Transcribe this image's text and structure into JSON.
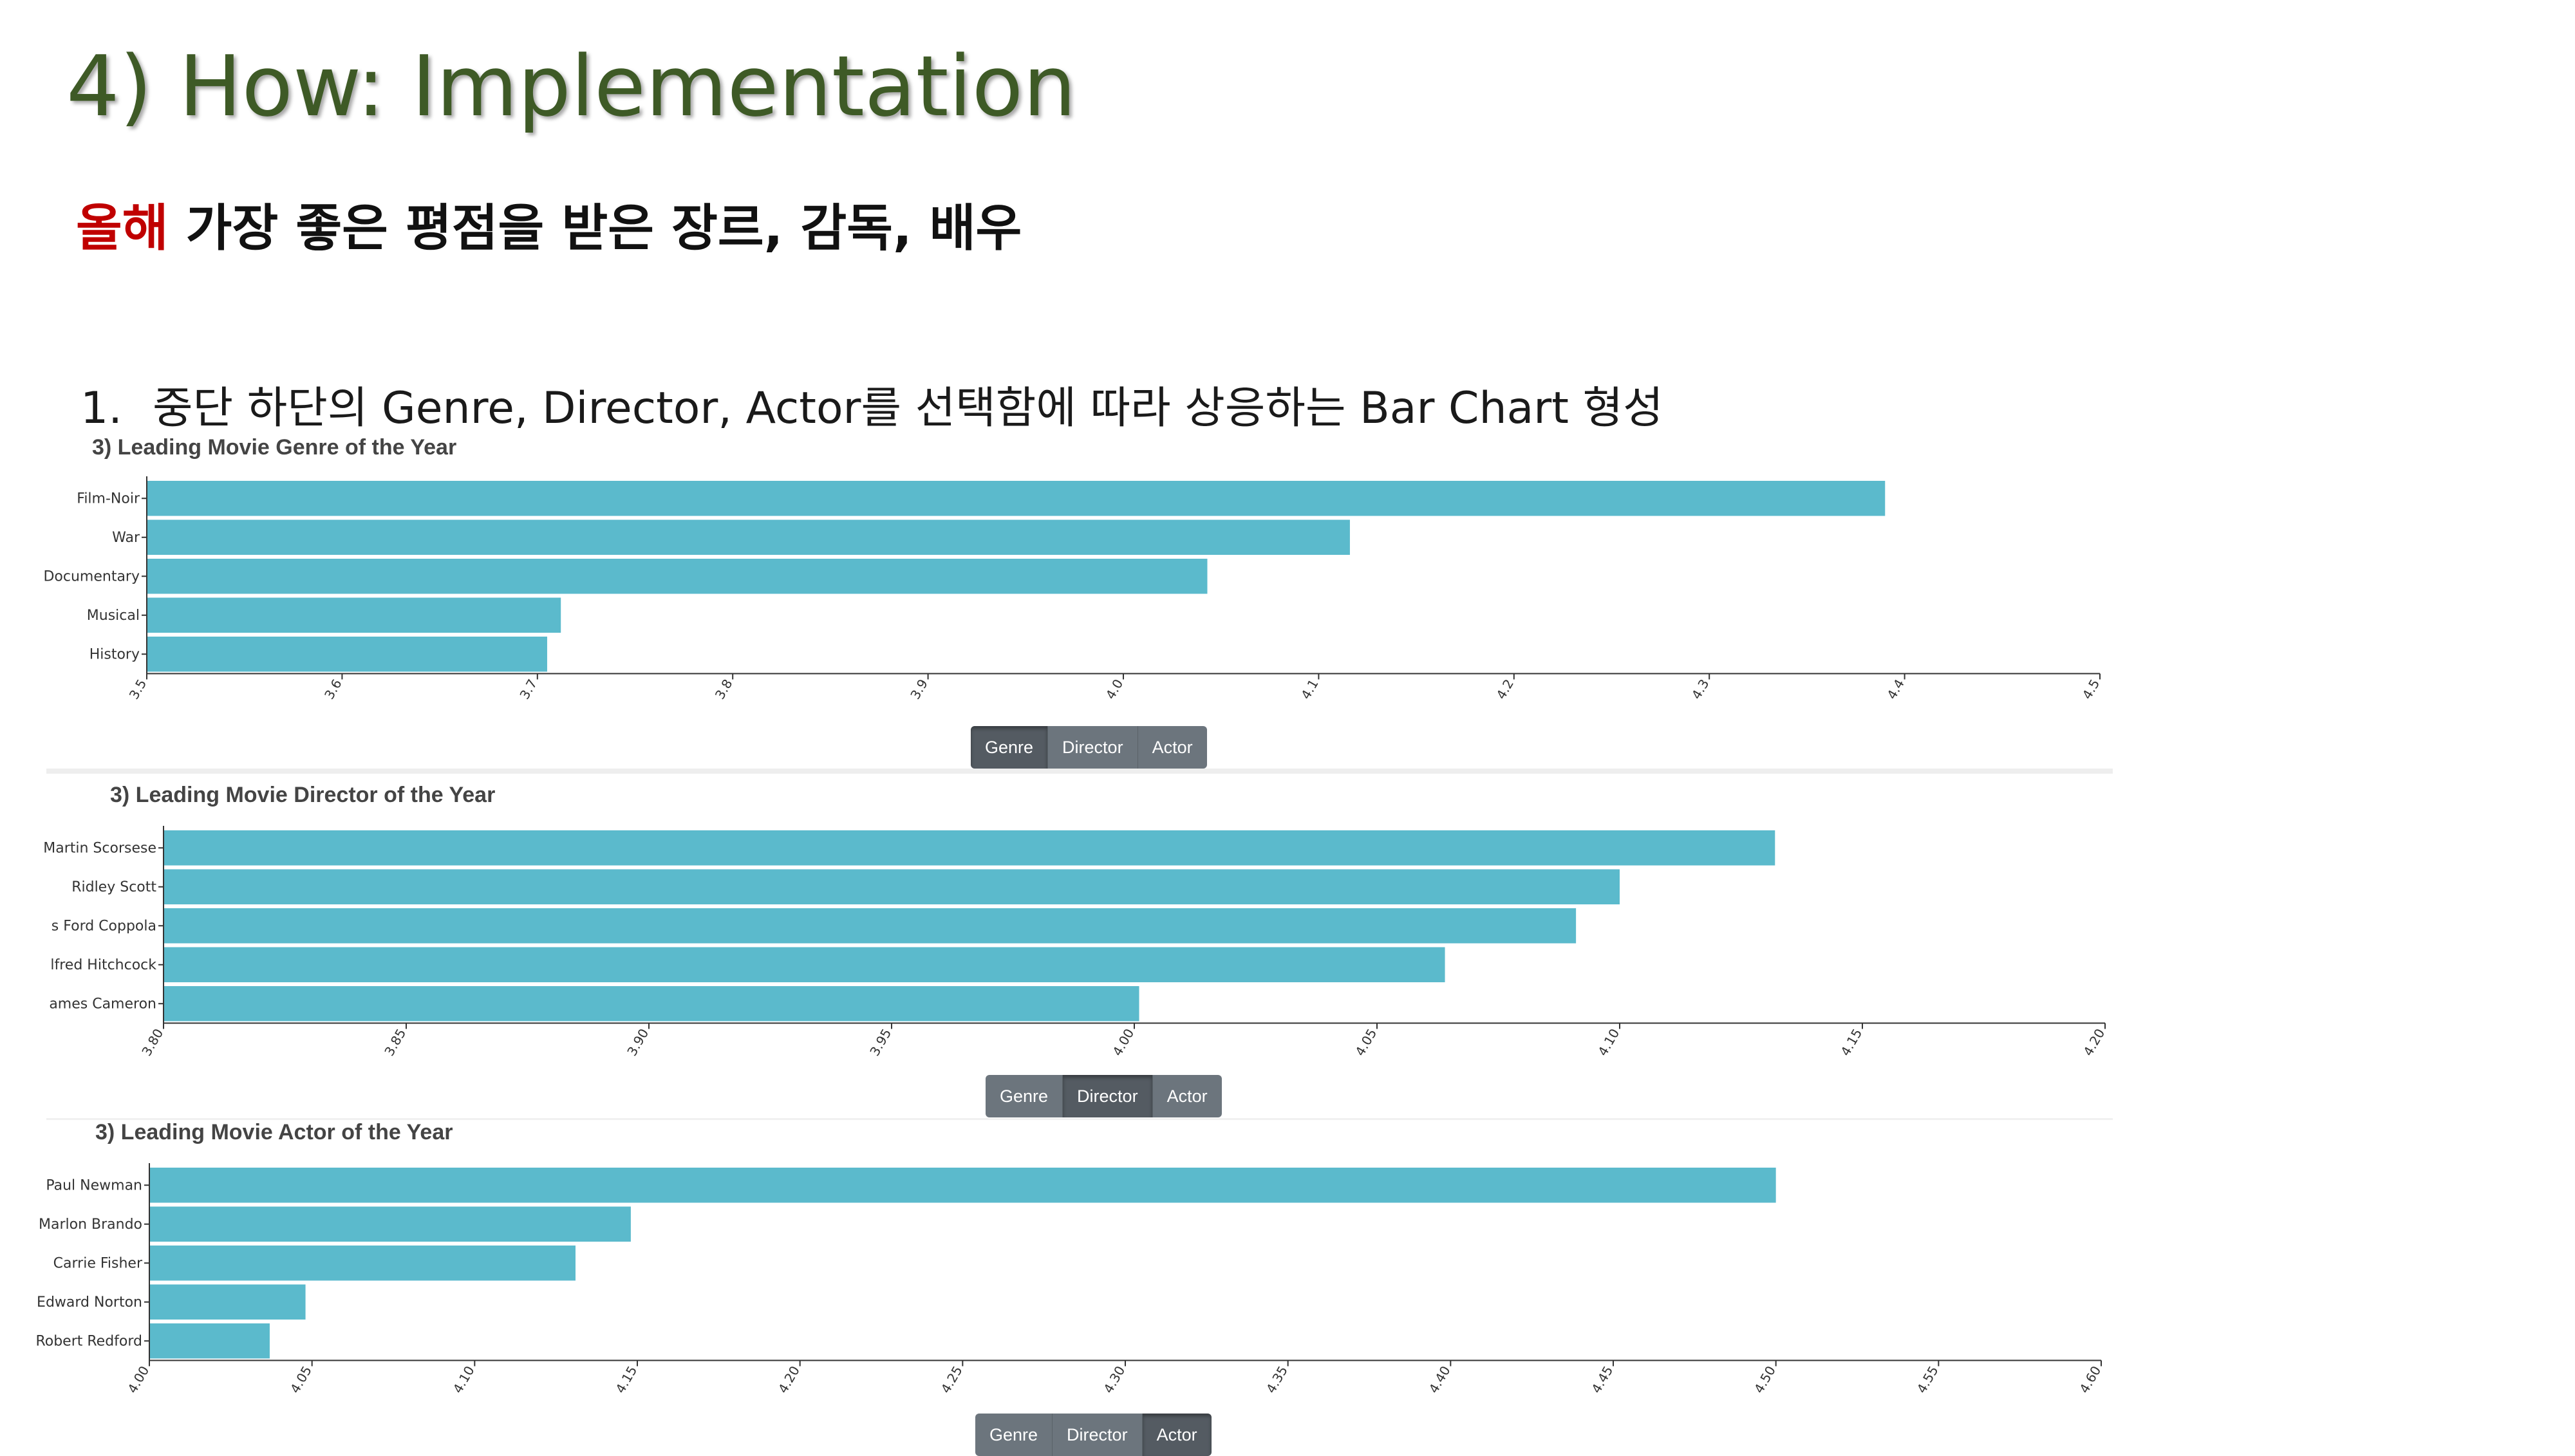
{
  "slide": {
    "title": "4) How: Implementation",
    "subtitle_highlight": "올해",
    "subtitle_rest": " 가장 좋은 평점을 받은 장르, 감독, 배우",
    "point_number": "1.",
    "point_text": "중단 하단의 Genre, Director, Actor를 선택함에 따라 상응하는 Bar Chart 형성"
  },
  "colors": {
    "bar": "#5bbacc",
    "title_green": "#3e5a26",
    "highlight_red": "#c00000",
    "button": "#6c757d",
    "button_active": "#545b62"
  },
  "chart_data": [
    {
      "type": "bar",
      "orientation": "horizontal",
      "title": "3) Leading Movie Genre of the Year",
      "categories": [
        "Film-Noir",
        "War",
        "Documentary",
        "Musical",
        "History"
      ],
      "values": [
        4.39,
        4.116,
        4.043,
        3.712,
        3.705
      ],
      "xlim": [
        3.5,
        4.5
      ],
      "ticks": [
        "3.5",
        "3.6",
        "3.7",
        "3.8",
        "3.9",
        "4.0",
        "4.1",
        "4.2",
        "4.3",
        "4.4",
        "4.5"
      ],
      "buttons": [
        "Genre",
        "Director",
        "Actor"
      ],
      "active_button": "Genre"
    },
    {
      "type": "bar",
      "orientation": "horizontal",
      "title": "3) Leading Movie Director of the Year",
      "categories": [
        "Martin Scorsese",
        "Ridley Scott",
        "s Ford Coppola",
        "lfred Hitchcock",
        "ames Cameron"
      ],
      "values": [
        4.132,
        4.1,
        4.091,
        4.064,
        4.001
      ],
      "xlim": [
        3.8,
        4.2
      ],
      "ticks": [
        "3.80",
        "3.85",
        "3.90",
        "3.95",
        "4.00",
        "4.05",
        "4.10",
        "4.15",
        "4.20"
      ],
      "buttons": [
        "Genre",
        "Director",
        "Actor"
      ],
      "active_button": "Director"
    },
    {
      "type": "bar",
      "orientation": "horizontal",
      "title": "3) Leading Movie Actor of the Year",
      "categories": [
        "Paul Newman",
        "Marlon Brando",
        "Carrie Fisher",
        "Edward Norton",
        "Robert Redford"
      ],
      "values": [
        4.5,
        4.148,
        4.131,
        4.048,
        4.037
      ],
      "xlim": [
        4.0,
        4.6
      ],
      "ticks": [
        "4.00",
        "4.05",
        "4.10",
        "4.15",
        "4.20",
        "4.25",
        "4.30",
        "4.35",
        "4.40",
        "4.45",
        "4.50",
        "4.55",
        "4.60"
      ],
      "buttons": [
        "Genre",
        "Director",
        "Actor"
      ],
      "active_button": "Actor"
    }
  ]
}
